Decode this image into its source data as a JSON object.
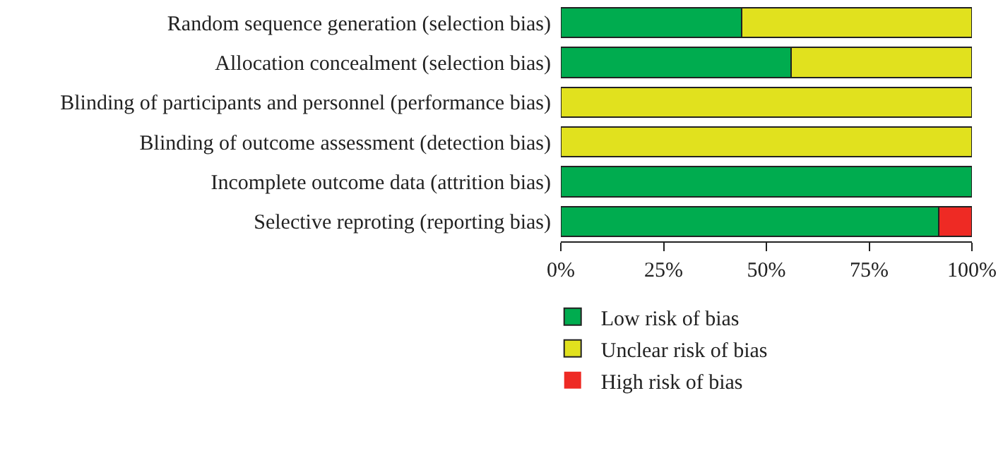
{
  "chart_data": {
    "type": "bar",
    "orientation": "horizontal",
    "stacked": true,
    "categories": [
      "Random sequence generation (selection bias)",
      "Allocation concealment (selection bias)",
      "Blinding of participants and personnel (performance bias)",
      "Blinding of outcome assessment (detection bias)",
      "Incomplete outcome data (attrition bias)",
      "Selective reproting (reporting bias)"
    ],
    "series": [
      {
        "name": "Low risk of bias",
        "color": "#00ac4f",
        "values": [
          44,
          56,
          0,
          0,
          100,
          92
        ]
      },
      {
        "name": "Unclear risk of bias",
        "color": "#e1e11e",
        "values": [
          56,
          44,
          100,
          100,
          0,
          0
        ]
      },
      {
        "name": "High risk of bias",
        "color": "#ee2a24",
        "values": [
          0,
          0,
          0,
          0,
          0,
          8
        ]
      }
    ],
    "xlim": [
      0,
      100
    ],
    "xticks": [
      {
        "value": 0,
        "label": "0%"
      },
      {
        "value": 25,
        "label": "25%"
      },
      {
        "value": 50,
        "label": "50%"
      },
      {
        "value": 75,
        "label": "75%"
      },
      {
        "value": 100,
        "label": "100%"
      }
    ],
    "grid": false,
    "legend": "bottom left"
  }
}
